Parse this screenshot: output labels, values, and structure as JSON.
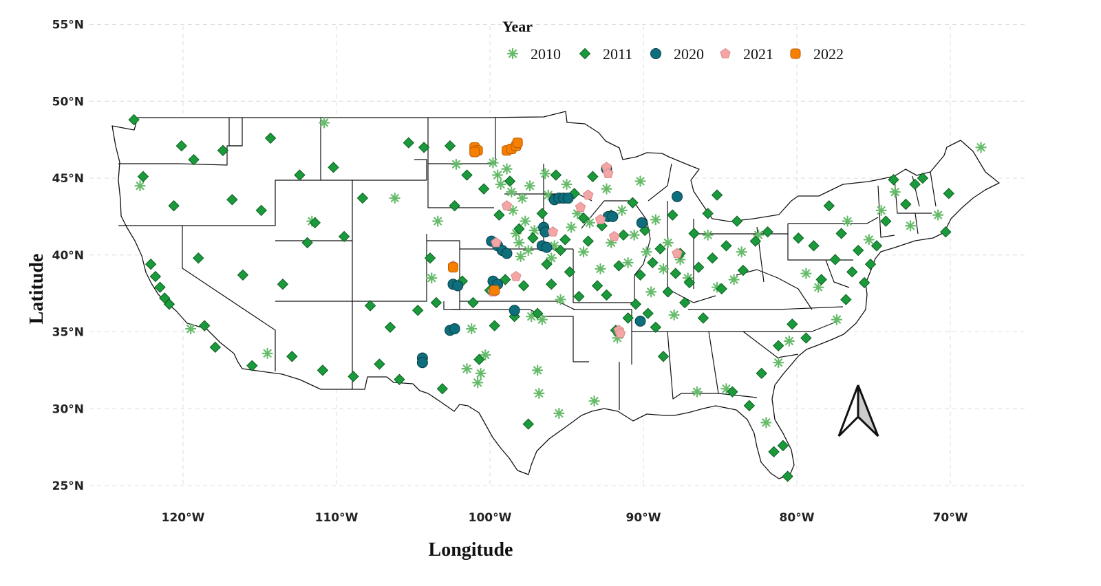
{
  "chart_data": {
    "type": "scatter",
    "map_extent": {
      "lon_range": [
        -126,
        -65
      ],
      "lat_range": [
        24,
        56
      ]
    },
    "xlabel": "Longitude",
    "ylabel": "Latitude",
    "x_ticks": [
      {
        "value": -120,
        "label": "120°W"
      },
      {
        "value": -110,
        "label": "110°W"
      },
      {
        "value": -100,
        "label": "100°W"
      },
      {
        "value": -90,
        "label": "90°W"
      },
      {
        "value": -80,
        "label": "80°W"
      },
      {
        "value": -70,
        "label": "70°W"
      }
    ],
    "y_ticks": [
      {
        "value": 25,
        "label": "25°N"
      },
      {
        "value": 30,
        "label": "30°N"
      },
      {
        "value": 35,
        "label": "35°N"
      },
      {
        "value": 40,
        "label": "40°N"
      },
      {
        "value": 45,
        "label": "45°N"
      },
      {
        "value": 50,
        "label": "50°N"
      },
      {
        "value": 55,
        "label": "55°N"
      }
    ],
    "grid": true,
    "legend": {
      "title": "Year",
      "position": "top-center",
      "orientation": "horizontal"
    },
    "series": [
      {
        "name": "2010",
        "marker": "asterisk",
        "color": "#66bb6a",
        "points": [
          [
            -122.8,
            44.5
          ],
          [
            -119.5,
            35.2
          ],
          [
            -114.5,
            33.6
          ],
          [
            -111.6,
            42.2
          ],
          [
            -110.8,
            48.6
          ],
          [
            -106.2,
            43.7
          ],
          [
            -103.8,
            38.5
          ],
          [
            -103.4,
            42.2
          ],
          [
            -102.2,
            45.9
          ],
          [
            -101.5,
            32.6
          ],
          [
            -101.2,
            35.2
          ],
          [
            -100.8,
            31.7
          ],
          [
            -100.6,
            32.3
          ],
          [
            -100.3,
            33.5
          ],
          [
            -99.8,
            46.0
          ],
          [
            -99.5,
            45.2
          ],
          [
            -99.3,
            44.6
          ],
          [
            -98.9,
            45.6
          ],
          [
            -98.6,
            44.1
          ],
          [
            -98.5,
            42.9
          ],
          [
            -98.3,
            41.4
          ],
          [
            -98.1,
            40.8
          ],
          [
            -98.0,
            39.9
          ],
          [
            -97.9,
            43.7
          ],
          [
            -97.7,
            42.2
          ],
          [
            -97.5,
            40.3
          ],
          [
            -97.4,
            44.5
          ],
          [
            -97.3,
            36.0
          ],
          [
            -97.1,
            41.6
          ],
          [
            -96.9,
            32.5
          ],
          [
            -96.8,
            31.0
          ],
          [
            -96.6,
            35.8
          ],
          [
            -96.4,
            45.3
          ],
          [
            -96.2,
            43.9
          ],
          [
            -96.0,
            39.8
          ],
          [
            -95.8,
            40.6
          ],
          [
            -95.5,
            29.7
          ],
          [
            -95.4,
            37.1
          ],
          [
            -95.0,
            44.6
          ],
          [
            -94.7,
            41.8
          ],
          [
            -94.3,
            42.7
          ],
          [
            -93.9,
            40.2
          ],
          [
            -93.5,
            42.1
          ],
          [
            -93.2,
            30.5
          ],
          [
            -92.8,
            39.1
          ],
          [
            -92.4,
            44.3
          ],
          [
            -92.1,
            40.8
          ],
          [
            -91.7,
            34.6
          ],
          [
            -91.4,
            42.9
          ],
          [
            -91.0,
            39.5
          ],
          [
            -90.6,
            41.3
          ],
          [
            -90.2,
            44.8
          ],
          [
            -89.8,
            40.2
          ],
          [
            -89.5,
            37.6
          ],
          [
            -89.2,
            42.3
          ],
          [
            -88.7,
            39.1
          ],
          [
            -88.4,
            40.8
          ],
          [
            -88.0,
            36.1
          ],
          [
            -87.6,
            39.7
          ],
          [
            -87.1,
            38.5
          ],
          [
            -86.5,
            31.1
          ],
          [
            -85.8,
            41.3
          ],
          [
            -85.2,
            37.9
          ],
          [
            -84.6,
            31.3
          ],
          [
            -84.1,
            38.4
          ],
          [
            -83.6,
            40.2
          ],
          [
            -82.5,
            41.3
          ],
          [
            -82.0,
            29.1
          ],
          [
            -81.2,
            33.0
          ],
          [
            -80.5,
            34.4
          ],
          [
            -79.4,
            38.8
          ],
          [
            -78.6,
            37.9
          ],
          [
            -77.4,
            35.8
          ],
          [
            -76.7,
            42.2
          ],
          [
            -75.3,
            41.0
          ],
          [
            -74.5,
            42.9
          ],
          [
            -73.6,
            44.1
          ],
          [
            -72.6,
            41.9
          ],
          [
            -70.8,
            42.6
          ],
          [
            -68.0,
            47.0
          ]
        ]
      },
      {
        "name": "2011",
        "marker": "diamond",
        "color": "#1a9a3a",
        "points": [
          [
            -123.2,
            48.8
          ],
          [
            -122.6,
            45.1
          ],
          [
            -122.1,
            39.4
          ],
          [
            -121.8,
            38.6
          ],
          [
            -121.5,
            37.9
          ],
          [
            -121.2,
            37.2
          ],
          [
            -120.9,
            36.8
          ],
          [
            -120.6,
            43.2
          ],
          [
            -120.1,
            47.1
          ],
          [
            -119.3,
            46.2
          ],
          [
            -119.0,
            39.8
          ],
          [
            -118.6,
            35.4
          ],
          [
            -117.9,
            34.0
          ],
          [
            -117.4,
            46.8
          ],
          [
            -116.8,
            43.6
          ],
          [
            -116.1,
            38.7
          ],
          [
            -115.5,
            32.8
          ],
          [
            -114.9,
            42.9
          ],
          [
            -114.3,
            47.6
          ],
          [
            -113.5,
            38.1
          ],
          [
            -112.9,
            33.4
          ],
          [
            -112.4,
            45.2
          ],
          [
            -111.9,
            40.8
          ],
          [
            -111.4,
            42.1
          ],
          [
            -110.9,
            32.5
          ],
          [
            -110.2,
            45.7
          ],
          [
            -109.5,
            41.2
          ],
          [
            -108.9,
            32.1
          ],
          [
            -108.3,
            43.7
          ],
          [
            -107.8,
            36.7
          ],
          [
            -107.2,
            32.9
          ],
          [
            -106.5,
            35.3
          ],
          [
            -105.9,
            31.9
          ],
          [
            -105.3,
            47.3
          ],
          [
            -104.7,
            36.4
          ],
          [
            -104.3,
            47.0
          ],
          [
            -103.9,
            39.8
          ],
          [
            -103.5,
            36.9
          ],
          [
            -103.1,
            31.3
          ],
          [
            -102.6,
            47.1
          ],
          [
            -102.3,
            43.2
          ],
          [
            -101.8,
            38.3
          ],
          [
            -101.5,
            45.2
          ],
          [
            -101.1,
            36.9
          ],
          [
            -100.7,
            33.2
          ],
          [
            -100.4,
            44.3
          ],
          [
            -100.0,
            37.7
          ],
          [
            -99.7,
            35.4
          ],
          [
            -99.4,
            42.6
          ],
          [
            -99.0,
            38.4
          ],
          [
            -98.7,
            44.8
          ],
          [
            -98.4,
            36.0
          ],
          [
            -98.1,
            41.7
          ],
          [
            -97.8,
            38.0
          ],
          [
            -97.5,
            29.0
          ],
          [
            -97.2,
            41.1
          ],
          [
            -96.9,
            36.2
          ],
          [
            -96.6,
            42.7
          ],
          [
            -96.3,
            39.4
          ],
          [
            -96.0,
            38.1
          ],
          [
            -95.7,
            45.2
          ],
          [
            -95.4,
            40.3
          ],
          [
            -95.1,
            41.0
          ],
          [
            -94.8,
            38.9
          ],
          [
            -94.5,
            44.0
          ],
          [
            -94.2,
            37.3
          ],
          [
            -93.9,
            42.4
          ],
          [
            -93.6,
            40.9
          ],
          [
            -93.3,
            45.1
          ],
          [
            -93.0,
            38.0
          ],
          [
            -92.7,
            41.9
          ],
          [
            -92.4,
            37.4
          ],
          [
            -92.1,
            42.6
          ],
          [
            -91.8,
            35.1
          ],
          [
            -91.6,
            39.3
          ],
          [
            -91.3,
            41.3
          ],
          [
            -91.0,
            35.9
          ],
          [
            -90.7,
            43.4
          ],
          [
            -90.5,
            36.8
          ],
          [
            -90.2,
            38.7
          ],
          [
            -89.9,
            41.6
          ],
          [
            -89.7,
            36.2
          ],
          [
            -89.4,
            39.5
          ],
          [
            -89.2,
            35.3
          ],
          [
            -88.9,
            40.4
          ],
          [
            -88.7,
            33.4
          ],
          [
            -88.4,
            37.6
          ],
          [
            -88.1,
            42.6
          ],
          [
            -87.9,
            38.8
          ],
          [
            -87.6,
            40.1
          ],
          [
            -87.3,
            36.9
          ],
          [
            -87.0,
            38.2
          ],
          [
            -86.7,
            41.4
          ],
          [
            -86.4,
            39.2
          ],
          [
            -86.1,
            35.9
          ],
          [
            -85.8,
            42.7
          ],
          [
            -85.5,
            39.8
          ],
          [
            -85.2,
            43.9
          ],
          [
            -84.9,
            37.8
          ],
          [
            -84.6,
            40.6
          ],
          [
            -84.2,
            31.1
          ],
          [
            -83.9,
            42.2
          ],
          [
            -83.5,
            39.0
          ],
          [
            -83.1,
            30.2
          ],
          [
            -82.7,
            40.9
          ],
          [
            -82.3,
            32.3
          ],
          [
            -81.9,
            41.5
          ],
          [
            -81.5,
            27.2
          ],
          [
            -81.2,
            34.1
          ],
          [
            -80.9,
            27.6
          ],
          [
            -80.6,
            25.6
          ],
          [
            -80.3,
            35.5
          ],
          [
            -79.9,
            41.1
          ],
          [
            -79.4,
            34.6
          ],
          [
            -78.9,
            40.6
          ],
          [
            -78.4,
            38.4
          ],
          [
            -77.9,
            43.2
          ],
          [
            -77.5,
            39.7
          ],
          [
            -77.1,
            41.4
          ],
          [
            -76.8,
            37.1
          ],
          [
            -76.4,
            38.9
          ],
          [
            -76.0,
            40.3
          ],
          [
            -75.6,
            38.2
          ],
          [
            -75.2,
            39.4
          ],
          [
            -74.8,
            40.6
          ],
          [
            -74.2,
            42.2
          ],
          [
            -73.7,
            44.9
          ],
          [
            -72.9,
            43.3
          ],
          [
            -72.3,
            44.6
          ],
          [
            -71.8,
            45.0
          ],
          [
            -70.3,
            41.5
          ],
          [
            -70.1,
            44.0
          ]
        ]
      },
      {
        "name": "2020",
        "marker": "circle",
        "color": "#0f6e7c",
        "points": [
          [
            -104.4,
            33.3
          ],
          [
            -104.4,
            33.0
          ],
          [
            -102.6,
            35.1
          ],
          [
            -102.3,
            35.2
          ],
          [
            -102.4,
            38.1
          ],
          [
            -102.1,
            38.0
          ],
          [
            -99.9,
            40.9
          ],
          [
            -99.5,
            40.6
          ],
          [
            -99.2,
            40.3
          ],
          [
            -98.9,
            40.1
          ],
          [
            -99.8,
            38.3
          ],
          [
            -99.5,
            38.1
          ],
          [
            -98.4,
            36.4
          ],
          [
            -96.5,
            41.8
          ],
          [
            -96.4,
            41.5
          ],
          [
            -96.6,
            40.6
          ],
          [
            -96.3,
            40.5
          ],
          [
            -95.8,
            43.6
          ],
          [
            -95.5,
            43.7
          ],
          [
            -95.2,
            43.7
          ],
          [
            -94.9,
            43.7
          ],
          [
            -92.3,
            42.5
          ],
          [
            -92.0,
            42.5
          ],
          [
            -90.1,
            42.1
          ],
          [
            -87.8,
            43.8
          ],
          [
            -90.2,
            35.7
          ],
          [
            -92.4,
            45.6
          ]
        ]
      },
      {
        "name": "2021",
        "marker": "pentagon",
        "color": "#f4a6a6",
        "points": [
          [
            -102.4,
            39.3
          ],
          [
            -99.8,
            37.6
          ],
          [
            -99.6,
            40.8
          ],
          [
            -98.9,
            43.2
          ],
          [
            -98.3,
            38.6
          ],
          [
            -95.9,
            41.5
          ],
          [
            -94.1,
            43.1
          ],
          [
            -93.6,
            43.9
          ],
          [
            -92.8,
            42.3
          ],
          [
            -92.4,
            45.7
          ],
          [
            -92.3,
            45.3
          ],
          [
            -91.9,
            41.2
          ],
          [
            -91.6,
            35.1
          ],
          [
            -91.5,
            34.9
          ],
          [
            -87.8,
            40.1
          ]
        ]
      },
      {
        "name": "2022",
        "marker": "rounded-square",
        "color": "#f77f00",
        "points": [
          [
            -102.4,
            39.2
          ],
          [
            -101.0,
            47.0
          ],
          [
            -100.8,
            46.8
          ],
          [
            -101.0,
            46.7
          ],
          [
            -99.7,
            37.7
          ],
          [
            -98.9,
            46.8
          ],
          [
            -98.6,
            46.9
          ],
          [
            -98.3,
            47.1
          ],
          [
            -98.2,
            47.3
          ]
        ]
      }
    ]
  },
  "colors": {
    "grid": "#dcdcdc",
    "outline": "#111111",
    "north_arrow_fill": "#cccccc"
  }
}
